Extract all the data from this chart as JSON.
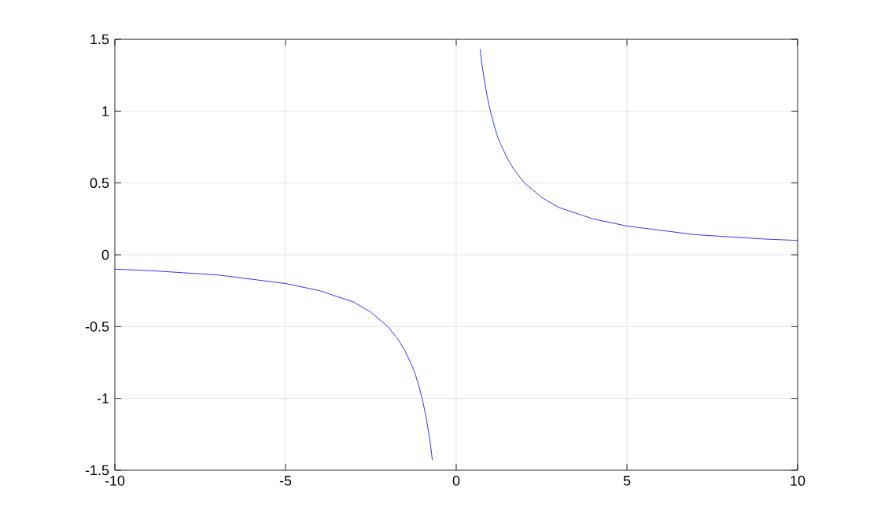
{
  "chart_data": {
    "type": "line",
    "xlim": [
      -10,
      10
    ],
    "ylim": [
      -1.5,
      1.5
    ],
    "xticks": [
      -10,
      -5,
      0,
      5,
      10
    ],
    "yticks": [
      -1.5,
      -1,
      -0.5,
      0,
      0.5,
      1,
      1.5
    ],
    "grid": true,
    "series": [
      {
        "color": "#0000ff",
        "x": [
          -10,
          -9,
          -8,
          -7,
          -6,
          -5,
          -4,
          -3,
          -2.5,
          -2,
          -1.7,
          -1.5,
          -1.3,
          -1.2,
          -1.1,
          -1,
          -0.9,
          -0.8,
          -0.75,
          -0.7
        ],
        "values": [
          -0.1,
          -0.11,
          -0.125,
          -0.14,
          -0.17,
          -0.2,
          -0.25,
          -0.33,
          -0.4,
          -0.5,
          -0.59,
          -0.67,
          -0.77,
          -0.83,
          -0.91,
          -1,
          -1.11,
          -1.25,
          -1.33,
          -1.43
        ]
      },
      {
        "color": "#0000ff",
        "x": [
          0.7,
          0.75,
          0.8,
          0.9,
          1,
          1.1,
          1.2,
          1.3,
          1.5,
          1.7,
          2,
          2.5,
          3,
          4,
          5,
          6,
          7,
          8,
          9,
          10
        ],
        "values": [
          1.43,
          1.33,
          1.25,
          1.11,
          1,
          0.91,
          0.83,
          0.77,
          0.67,
          0.59,
          0.5,
          0.4,
          0.33,
          0.25,
          0.2,
          0.17,
          0.14,
          0.125,
          0.11,
          0.1
        ]
      }
    ]
  }
}
